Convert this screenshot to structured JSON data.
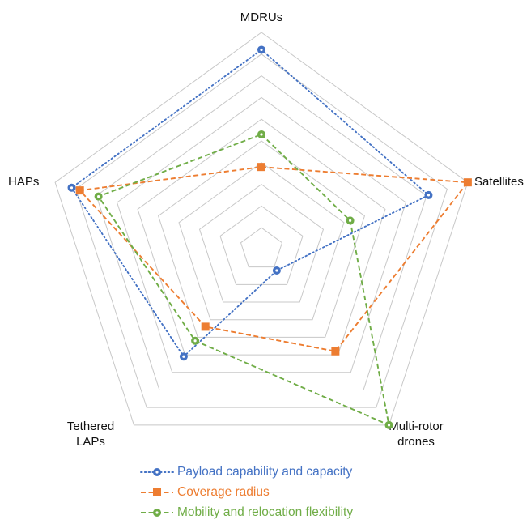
{
  "chart_data": {
    "type": "radar",
    "axes": [
      "MDRUs",
      "Satellites",
      "Multi-rotor drones",
      "Tethered LAPs",
      "HAPs"
    ],
    "axis_label_lines": [
      [
        "MDRUs"
      ],
      [
        "Satellites"
      ],
      [
        "Multi-rotor",
        "drones"
      ],
      [
        "Tethered",
        "LAPs"
      ],
      [
        "HAPs"
      ]
    ],
    "rlim": [
      0,
      10
    ],
    "rings": 10,
    "grid": true,
    "legend_position": "bottom",
    "series": [
      {
        "name": "Payload capability and capacity",
        "values": [
          9.2,
          8.1,
          1.2,
          6.1,
          9.2
        ],
        "color": "#4472C4",
        "line_style": "dotted",
        "marker": "circle"
      },
      {
        "name": "Coverage radius",
        "values": [
          3.8,
          10.0,
          5.8,
          4.4,
          8.8
        ],
        "color": "#ED7D31",
        "line_style": "dashed",
        "marker": "square"
      },
      {
        "name": "Mobility and relocation flexibility",
        "values": [
          5.3,
          4.3,
          10.0,
          5.2,
          7.9
        ],
        "color": "#70AD47",
        "line_style": "dashed",
        "marker": "circle"
      }
    ]
  }
}
